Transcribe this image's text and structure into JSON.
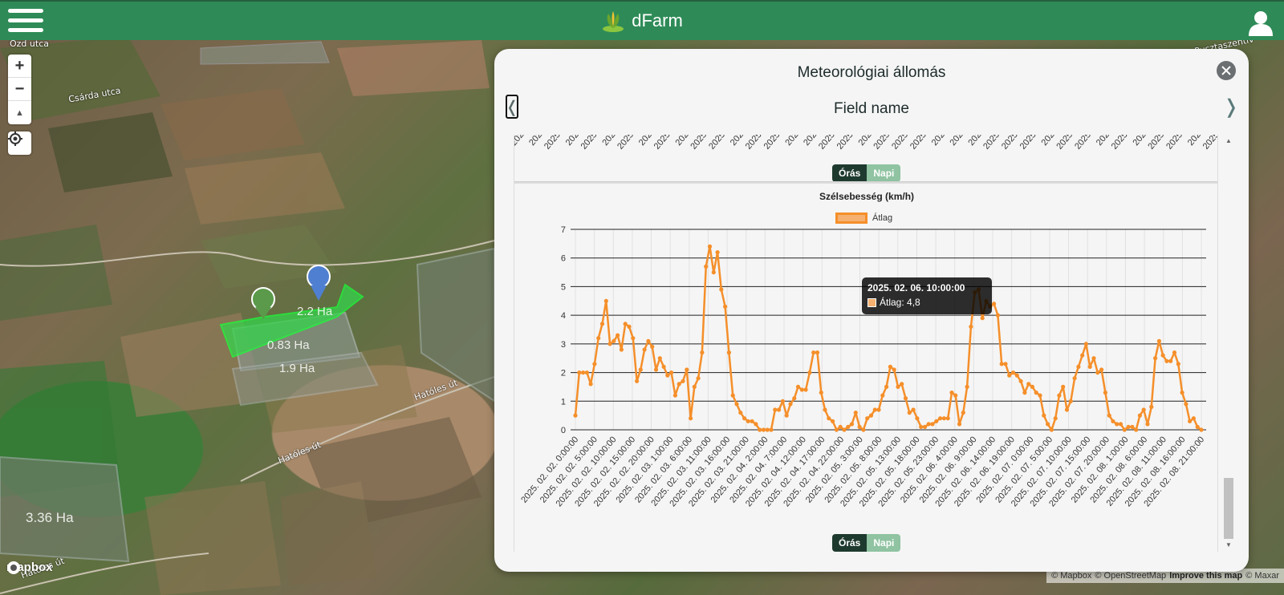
{
  "header": {
    "brand": "dFarm"
  },
  "map": {
    "street_labels": [
      "Ózd utca",
      "Csárda utca",
      "Hatóles út",
      "Hatóles út",
      "Hatóles út",
      "Pusztaszentiv"
    ],
    "field_areas": [
      "2.2 Ha",
      "0.83 Ha",
      "1.9 Ha",
      "3.36 Ha"
    ],
    "zoom_in": "+",
    "zoom_out": "−",
    "compass": "▲",
    "logo_text": "mapbox",
    "attribution": {
      "mapbox": "© Mapbox",
      "osm": "© OpenStreetMap",
      "improve": "Improve this map",
      "maxar": "© Maxar"
    }
  },
  "panel": {
    "title": "Meteorológiai állomás",
    "field_name": "Field name",
    "prev": "❬",
    "next": "❭",
    "top_toggle": {
      "hourly": "Órás",
      "daily": "Napi"
    },
    "bottom_toggle": {
      "hourly": "Órás",
      "daily": "Napi"
    },
    "tooltip": {
      "title": "2025. 02. 06. 10:00:00",
      "value": "Átlag: 4,8"
    }
  },
  "chart_data": {
    "type": "line",
    "title": "Szélsebesség (km/h)",
    "series": [
      {
        "name": "Átlag",
        "color": "#f58f2a",
        "values": [
          0.5,
          2.0,
          2.0,
          2.0,
          1.6,
          2.3,
          3.2,
          3.7,
          4.5,
          3.0,
          3.1,
          3.3,
          2.8,
          3.7,
          3.6,
          3.2,
          1.7,
          2.1,
          2.8,
          3.1,
          2.9,
          2.1,
          2.5,
          2.2,
          1.9,
          2.0,
          1.2,
          1.6,
          1.7,
          2.1,
          0.4,
          1.5,
          1.8,
          2.7,
          5.7,
          6.4,
          5.5,
          6.2,
          4.9,
          4.3,
          2.7,
          1.2,
          0.9,
          0.6,
          0.4,
          0.3,
          0.3,
          0.2,
          0.0,
          0.0,
          0.0,
          0.0,
          0.7,
          0.7,
          1.0,
          0.5,
          0.9,
          1.1,
          1.5,
          1.4,
          1.4,
          2.0,
          2.7,
          2.7,
          1.3,
          0.7,
          0.4,
          0.3,
          0.0,
          0.1,
          0.0,
          0.1,
          0.2,
          0.6,
          0.1,
          0.0,
          0.4,
          0.5,
          0.7,
          0.7,
          1.2,
          1.5,
          2.2,
          2.1,
          1.5,
          1.6,
          1.1,
          0.6,
          0.7,
          0.4,
          0.1,
          0.1,
          0.2,
          0.2,
          0.3,
          0.4,
          0.4,
          0.4,
          1.3,
          1.2,
          0.2,
          0.6,
          1.5,
          3.6,
          4.8,
          4.9,
          3.9,
          4.5,
          4.3,
          4.4,
          4.0,
          2.3,
          2.3,
          1.9,
          2.0,
          1.9,
          1.7,
          1.3,
          1.6,
          1.5,
          1.3,
          1.2,
          0.5,
          0.2,
          0.0,
          0.4,
          1.2,
          1.5,
          0.7,
          1.0,
          1.8,
          2.2,
          2.6,
          3.0,
          2.2,
          2.5,
          2.0,
          2.1,
          1.3,
          0.5,
          0.3,
          0.2,
          0.2,
          0.0,
          0.1,
          0.1,
          0.0,
          0.5,
          0.7,
          0.2,
          0.8,
          2.5,
          3.1,
          2.6,
          2.4,
          2.4,
          2.7,
          2.3,
          1.3,
          0.9,
          0.3,
          0.4,
          0.1,
          0.0
        ]
      }
    ],
    "ylim": [
      0,
      7
    ],
    "y_ticks": [
      "0",
      "1",
      "2",
      "3",
      "4",
      "5",
      "6",
      "7"
    ],
    "x_tick_labels": [
      "2025. 02. 02. 0:00:00",
      "2025. 02. 02. 5:00:00",
      "2025. 02. 02. 10:00:00",
      "2025. 02. 02. 15:00:00",
      "2025. 02. 02. 20:00:00",
      "2025. 02. 03. 1:00:00",
      "2025. 02. 03. 6:00:00",
      "2025. 02. 03. 11:00:00",
      "2025. 02. 03. 16:00:00",
      "2025. 02. 03. 21:00:00",
      "2025. 02. 04. 2:00:00",
      "2025. 02. 04. 7:00:00",
      "2025. 02. 04. 12:00:00",
      "2025. 02. 04. 17:00:00",
      "2025. 02. 04. 22:00:00",
      "2025. 02. 05. 3:00:00",
      "2025. 02. 05. 8:00:00",
      "2025. 02. 05. 13:00:00",
      "2025. 02. 05. 18:00:00",
      "2025. 02. 05. 23:00:00",
      "2025. 02. 06. 4:00:00",
      "2025. 02. 06. 9:00:00",
      "2025. 02. 06. 14:00:00",
      "2025. 02. 06. 19:00:00",
      "2025. 02. 07. 0:00:00",
      "2025. 02. 07. 5:00:00",
      "2025. 02. 07. 10:00:00",
      "2025. 02. 07. 15:00:00",
      "2025. 02. 07. 20:00:00",
      "2025. 02. 08. 1:00:00",
      "2025. 02. 08. 6:00:00",
      "2025. 02. 08. 11:00:00",
      "2025. 02. 08. 16:00:00",
      "2025. 02. 08. 21:00:00"
    ],
    "top_chart_cut_labels": [
      "202",
      "202",
      "2025",
      "202",
      "2025",
      "202",
      "2025",
      "202",
      "2025",
      "202",
      "2025",
      "2025",
      "202",
      "2025",
      "2025",
      "202",
      "202",
      "2025",
      "2025",
      "202",
      "2025",
      "2025",
      "2025",
      "202",
      "202",
      "202",
      "2025",
      "2025",
      "2025",
      "202",
      "2025",
      "2025",
      "202",
      "2025",
      "202",
      "2025",
      "2025",
      "202",
      "2025"
    ],
    "grid": true,
    "legend_position": "top"
  }
}
